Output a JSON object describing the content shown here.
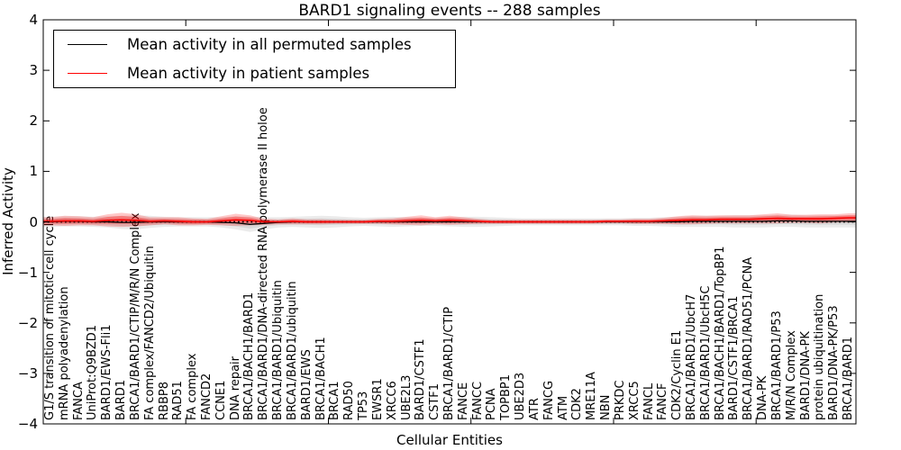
{
  "chart_data": {
    "type": "line",
    "title": "BARD1 signaling events -- 288 samples",
    "xlabel": "Cellular Entities",
    "ylabel": "Inferred Activity",
    "ylim": [
      -4,
      4
    ],
    "yticks": [
      4,
      3,
      2,
      1,
      0,
      -1,
      -2,
      -3,
      -4
    ],
    "x_major_tick_positions": [
      10,
      20,
      30,
      40,
      50
    ],
    "grid": false,
    "zero_line": "dotted",
    "legend": {
      "position": "upper left",
      "items": [
        {
          "label": "Mean activity in all permuted samples",
          "color": "#000000"
        },
        {
          "label": "Mean activity in patient samples",
          "color": "#ff0000"
        }
      ]
    },
    "categories": [
      "G1/S transition of mitotic cell cycle",
      "mRNA polyadenylation",
      "FANCA",
      "UniProt:Q9BZD1",
      "BARD1/EWS-Fli1",
      "BARD1",
      "BRCA1/BARD1/CTIP/M/R/N Complex",
      "FA complex/FANCD2/Ubiquitin",
      "RBBP8",
      "RAD51",
      "FA complex",
      "FANCD2",
      "CCNE1",
      "DNA repair",
      "BRCA1/BACH1/BARD1",
      "BRCA1/BARD1/DNA-directed RNA polymerase II holoe",
      "BRCA1/BARD1/Ubiquitin",
      "BRCA1/BARD1/ubiquitin",
      "BARD1/EWS",
      "BRCA1/BACH1",
      "BRCA1",
      "RAD50",
      "TP53",
      "EWSR1",
      "XRCC6",
      "UBE2L3",
      "BARD1/CSTF1",
      "CSTF1",
      "BRCA1/BARD1/CTIP",
      "FANCE",
      "FANCC",
      "PCNA",
      "TOPBP1",
      "UBE2D3",
      "ATR",
      "FANCG",
      "ATM",
      "CDK2",
      "MRE11A",
      "NBN",
      "PRKDC",
      "XRCC5",
      "FANCL",
      "FANCF",
      "CDK2/Cyclin E1",
      "BRCA1/BARD1/UbcH7",
      "BRCA1/BARD1/UbcH5C",
      "BRCA1/BACH1/BARD1/TopBP1",
      "BARD1/CSTF1/BRCA1",
      "BRCA1/BARD1/RAD51/PCNA",
      "DNA-PK",
      "BRCA1/BARD1/P53",
      "M/R/N Complex",
      "BARD1/DNA-PK",
      "protein ubiquitination",
      "BARD1/DNA-PK/P53",
      "BRCA1/BARD1"
    ],
    "series": [
      {
        "name": "Mean activity in all permuted samples",
        "color": "#000000",
        "values": [
          0,
          0.01,
          0.01,
          0,
          0,
          -0.01,
          -0.01,
          0,
          0,
          0,
          0,
          0,
          -0.01,
          -0.02,
          -0.05,
          -0.03,
          -0.01,
          0,
          0,
          0,
          0,
          0,
          0,
          0,
          0,
          0,
          0,
          0,
          0,
          0,
          0,
          0,
          0,
          0,
          0,
          0,
          0,
          0,
          0,
          0,
          0,
          0,
          0,
          0,
          0,
          0.01,
          0.01,
          0.01,
          0.01,
          0.01,
          0.01,
          0.02,
          0.02,
          0.01,
          0.01,
          0.01,
          0.01
        ]
      },
      {
        "name": "Mean activity in patient samples",
        "color": "#ff0000",
        "values": [
          0.01,
          0.02,
          0.02,
          0.01,
          0.03,
          0.04,
          0.03,
          0.01,
          0.02,
          0.01,
          0,
          0,
          0.02,
          0.04,
          0.03,
          0,
          0,
          0.01,
          0,
          0,
          0,
          0,
          0,
          0.01,
          0.01,
          0.02,
          0.03,
          0.02,
          0.03,
          0.02,
          0.01,
          0,
          0,
          0,
          0,
          0,
          0,
          0,
          0,
          0.01,
          0.01,
          0.01,
          0.01,
          0.02,
          0.03,
          0.04,
          0.04,
          0.05,
          0.05,
          0.05,
          0.06,
          0.07,
          0.06,
          0.06,
          0.06,
          0.07,
          0.08
        ]
      }
    ],
    "bands": [
      {
        "name": "permuted samples activity spread",
        "series": 0,
        "fill": "rgba(0,0,0,0.08)",
        "fill_inner": "rgba(0,0,0,0.08)",
        "half_widths": [
          0.1,
          0.1,
          0.1,
          0.1,
          0.11,
          0.13,
          0.14,
          0.12,
          0.1,
          0.09,
          0.09,
          0.09,
          0.1,
          0.13,
          0.15,
          0.12,
          0.1,
          0.1,
          0.11,
          0.12,
          0.11,
          0.09,
          0.08,
          0.09,
          0.1,
          0.09,
          0.08,
          0.08,
          0.09,
          0.1,
          0.1,
          0.09,
          0.08,
          0.07,
          0.07,
          0.07,
          0.07,
          0.07,
          0.07,
          0.07,
          0.07,
          0.08,
          0.08,
          0.09,
          0.1,
          0.11,
          0.11,
          0.11,
          0.12,
          0.12,
          0.12,
          0.12,
          0.12,
          0.12,
          0.12,
          0.12,
          0.12
        ]
      },
      {
        "name": "patient samples activity spread",
        "series": 1,
        "fill": "rgba(255,0,0,0.22)",
        "fill_inner": "rgba(255,0,0,0.33)",
        "half_widths": [
          0.08,
          0.1,
          0.09,
          0.08,
          0.12,
          0.14,
          0.12,
          0.08,
          0.07,
          0.08,
          0.07,
          0.06,
          0.09,
          0.12,
          0.1,
          0.06,
          0.05,
          0.06,
          0.05,
          0.05,
          0.04,
          0.04,
          0.04,
          0.05,
          0.06,
          0.08,
          0.1,
          0.07,
          0.09,
          0.07,
          0.05,
          0.04,
          0.04,
          0.04,
          0.04,
          0.04,
          0.04,
          0.04,
          0.04,
          0.04,
          0.04,
          0.05,
          0.05,
          0.06,
          0.08,
          0.09,
          0.08,
          0.08,
          0.08,
          0.08,
          0.09,
          0.1,
          0.08,
          0.08,
          0.09,
          0.08,
          0.09
        ]
      }
    ]
  }
}
